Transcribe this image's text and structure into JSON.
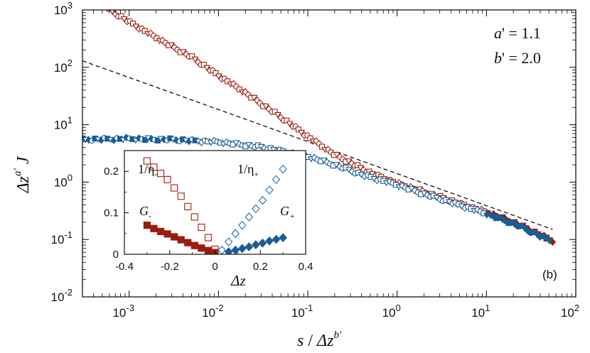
{
  "chart_data": {
    "type": "scatter",
    "panel_label": "(b)",
    "annotations": [
      {
        "var": "a",
        "prime": "'",
        "eq": " = ",
        "value": "1.1"
      },
      {
        "var": "b",
        "prime": "'",
        "eq": " = ",
        "value": "2.0"
      }
    ],
    "main": {
      "xscale": "log",
      "yscale": "log",
      "xlim": [
        0.0003,
        100
      ],
      "ylim": [
        0.01,
        1000
      ],
      "xticks": [
        {
          "base": "10",
          "exp": "-3"
        },
        {
          "base": "10",
          "exp": "-2"
        },
        {
          "base": "10",
          "exp": "-1"
        },
        {
          "base": "10",
          "exp": "0"
        },
        {
          "base": "10",
          "exp": "1"
        },
        {
          "base": "10",
          "exp": "2"
        }
      ],
      "yticks": [
        {
          "base": "10",
          "exp": "-2"
        },
        {
          "base": "10",
          "exp": "-1"
        },
        {
          "base": "10",
          "exp": "0"
        },
        {
          "base": "10",
          "exp": "1"
        },
        {
          "base": "10",
          "exp": "2"
        },
        {
          "base": "10",
          "exp": "3"
        }
      ],
      "xlabel": {
        "s": "s",
        "slash": " / ",
        "dz": "Δz",
        "exp": "b'"
      },
      "ylabel": {
        "dz": "Δz",
        "exp": "a'",
        "j": "J"
      },
      "guide_line": {
        "style": "dashed",
        "x": [
          0.0003,
          55
        ],
        "y": [
          130,
          0.15
        ]
      },
      "series": [
        {
          "name": "upper branch (red)",
          "color": "#9b1c0c",
          "x": [
            0.0006,
            0.001,
            0.002,
            0.005,
            0.01,
            0.02,
            0.05,
            0.1,
            0.2,
            0.5,
            1,
            2,
            5,
            10,
            20,
            55
          ],
          "y": [
            1000,
            620,
            330,
            150,
            72,
            36,
            13.5,
            6.2,
            3.0,
            1.45,
            0.95,
            0.68,
            0.42,
            0.3,
            0.2,
            0.095
          ]
        },
        {
          "name": "lower branch (blue)",
          "color": "#1a5c96",
          "x": [
            0.0003,
            0.001,
            0.003,
            0.01,
            0.03,
            0.1,
            0.2,
            0.4,
            0.7,
            1,
            2,
            5,
            10,
            20,
            55
          ],
          "y": [
            5.5,
            5.7,
            5.5,
            5.0,
            4.1,
            2.8,
            2.0,
            1.35,
            1.05,
            0.9,
            0.62,
            0.4,
            0.28,
            0.19,
            0.09
          ]
        }
      ]
    },
    "inset": {
      "xlim": [
        -0.4,
        0.4
      ],
      "ylim": [
        0,
        0.25
      ],
      "xticks": [
        "-0.4",
        "-0.2",
        "0",
        "0.2",
        "0.4"
      ],
      "yticks": [
        "0",
        "0.1",
        "0.2"
      ],
      "xlabel": "Δz",
      "series": [
        {
          "name": "1/η-",
          "label_main": "1/η",
          "label_sub": "-",
          "color": "#a8301c",
          "marker": "open-square",
          "x": [
            -0.3,
            -0.27,
            -0.24,
            -0.21,
            -0.18,
            -0.15,
            -0.12,
            -0.09,
            -0.06,
            -0.03,
            0.0
          ],
          "y": [
            0.225,
            0.21,
            0.195,
            0.18,
            0.16,
            0.14,
            0.115,
            0.09,
            0.065,
            0.04,
            0.012
          ]
        },
        {
          "name": "G-",
          "label_main": "G",
          "label_sub": "-",
          "color": "#9b1c0c",
          "marker": "filled-square",
          "x": [
            -0.3,
            -0.27,
            -0.24,
            -0.21,
            -0.18,
            -0.15,
            -0.12,
            -0.09,
            -0.06,
            -0.03,
            0.0
          ],
          "y": [
            0.07,
            0.062,
            0.055,
            0.049,
            0.042,
            0.035,
            0.028,
            0.021,
            0.015,
            0.009,
            0.004
          ]
        },
        {
          "name": "1/η+",
          "label_main": "1/η",
          "label_sub": "+",
          "color": "#2a7ab8",
          "marker": "open-diamond",
          "x": [
            0.03,
            0.06,
            0.09,
            0.12,
            0.15,
            0.18,
            0.21,
            0.24,
            0.27,
            0.3
          ],
          "y": [
            0.01,
            0.03,
            0.05,
            0.07,
            0.09,
            0.11,
            0.13,
            0.155,
            0.18,
            0.205
          ]
        },
        {
          "name": "G+",
          "label_main": "G",
          "label_sub": "+",
          "color": "#1a5c96",
          "marker": "filled-diamond",
          "x": [
            0.06,
            0.09,
            0.12,
            0.15,
            0.18,
            0.21,
            0.24,
            0.27,
            0.3
          ],
          "y": [
            0.006,
            0.01,
            0.014,
            0.018,
            0.023,
            0.027,
            0.032,
            0.036,
            0.04
          ]
        }
      ]
    }
  }
}
